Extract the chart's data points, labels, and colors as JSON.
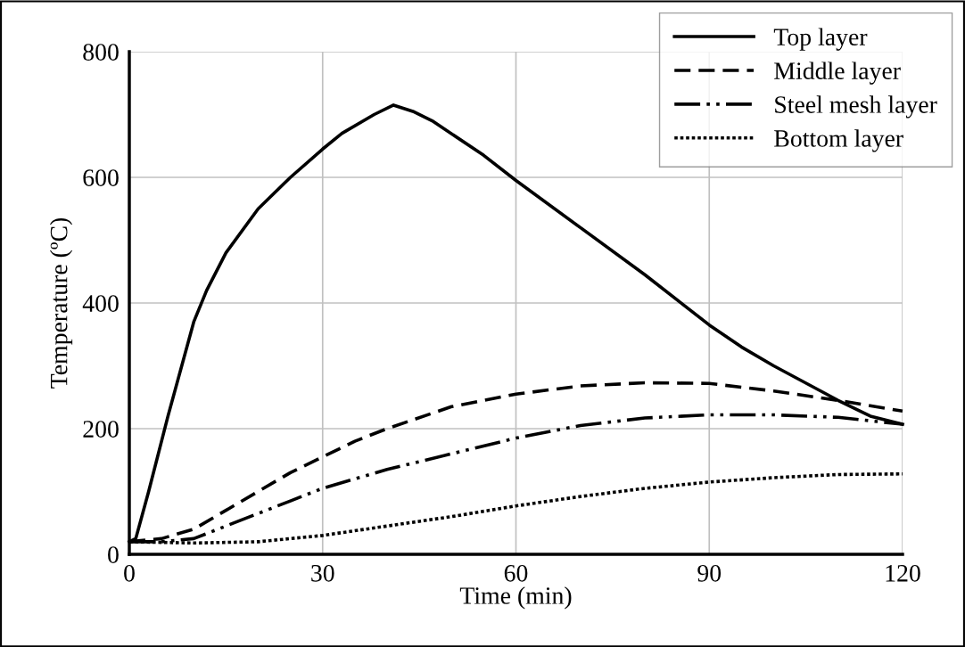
{
  "chart_data": {
    "type": "line",
    "xlabel": "Time (min)",
    "ylabel": "Temperature (ºC)",
    "xlim": [
      0,
      120
    ],
    "xticks": [
      0,
      30,
      60,
      90,
      120
    ],
    "ylim": [
      0,
      800
    ],
    "yticks": [
      0,
      200,
      400,
      600,
      800
    ],
    "grid": true,
    "legend": "top right",
    "marker": "none",
    "series": [
      {
        "name": "Top layer",
        "color": "#000000",
        "line_style": "solid",
        "x": [
          0,
          1,
          3,
          6,
          10,
          12,
          15,
          20,
          25,
          30,
          33,
          38,
          41,
          44,
          47,
          55,
          60,
          70,
          80,
          90,
          95,
          100,
          110,
          115,
          120
        ],
        "values": [
          20,
          25,
          100,
          220,
          370,
          420,
          480,
          550,
          600,
          645,
          670,
          700,
          715,
          705,
          690,
          635,
          595,
          520,
          445,
          365,
          330,
          300,
          245,
          220,
          207
        ]
      },
      {
        "name": "Middle layer",
        "color": "#000000",
        "line_style": "dashed",
        "x": [
          0,
          5,
          10,
          15,
          20,
          25,
          30,
          35,
          40,
          50,
          60,
          70,
          80,
          90,
          100,
          110,
          120
        ],
        "values": [
          20,
          25,
          40,
          70,
          100,
          130,
          155,
          180,
          200,
          235,
          255,
          268,
          273,
          272,
          260,
          245,
          228
        ]
      },
      {
        "name": "Steel mesh layer",
        "color": "#000000",
        "line_style": "dashdot",
        "x": [
          0,
          5,
          10,
          15,
          20,
          25,
          30,
          40,
          50,
          60,
          70,
          80,
          90,
          100,
          110,
          120
        ],
        "values": [
          20,
          20,
          25,
          45,
          65,
          85,
          105,
          135,
          160,
          185,
          205,
          217,
          222,
          222,
          218,
          207
        ]
      },
      {
        "name": "Bottom layer",
        "color": "#000000",
        "line_style": "dotted",
        "x": [
          0,
          10,
          20,
          25,
          30,
          40,
          50,
          60,
          70,
          80,
          90,
          100,
          110,
          120
        ],
        "values": [
          20,
          18,
          20,
          25,
          30,
          45,
          60,
          77,
          92,
          105,
          115,
          122,
          127,
          128
        ]
      }
    ]
  }
}
